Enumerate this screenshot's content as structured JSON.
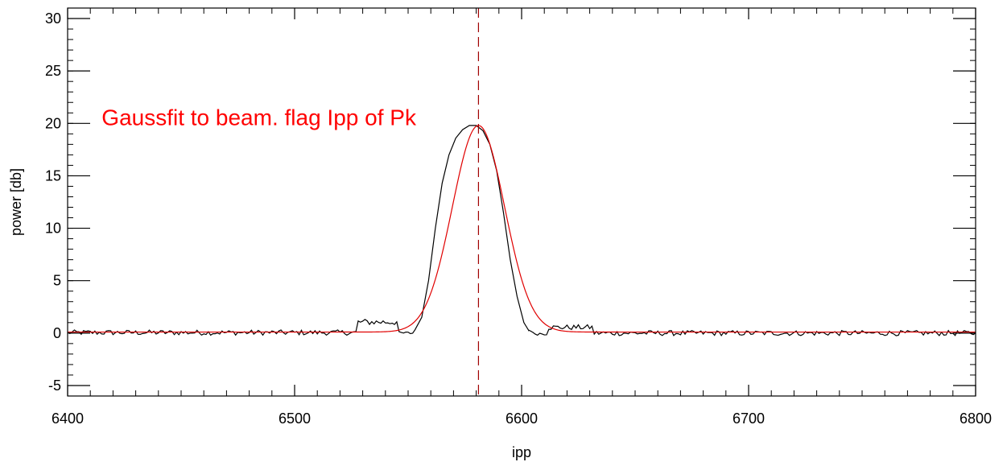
{
  "chart_data": {
    "type": "line",
    "title": "",
    "xlabel": "ipp",
    "ylabel": "power [db]",
    "xlim": [
      6400,
      6800
    ],
    "ylim": [
      -6,
      31
    ],
    "x_ticks": [
      6400,
      6500,
      6600,
      6700,
      6800
    ],
    "x_tick_labels": [
      "6400",
      "6500",
      "6600",
      "6700",
      "6800"
    ],
    "x_minor_step": 10,
    "y_ticks": [
      -5,
      0,
      5,
      10,
      15,
      20,
      25,
      30
    ],
    "y_tick_labels": [
      "-5",
      "0",
      "5",
      "10",
      "15",
      "20",
      "25",
      "30"
    ],
    "y_minor_step": 1,
    "grid": false,
    "annotation": {
      "text": "Gaussfit to beam. flag Ipp of Pk",
      "x": 6415,
      "y": 20,
      "color": "#ff0000"
    },
    "marker_line": {
      "x": 6581,
      "style": "dashed",
      "color": "#a00000"
    },
    "series": [
      {
        "kind": "measured",
        "color": "#000000",
        "x_start": 6400,
        "x_step": 1,
        "noise_ranges": [
          {
            "x": [
              6400,
              6528
            ],
            "mean": 0.05,
            "amp": 0.25
          },
          {
            "x": [
              6528,
              6546
            ],
            "mean": 1.05,
            "amp": 0.3
          },
          {
            "x": [
              6546,
              6553
            ],
            "mean": 0.0,
            "amp": 0.15
          },
          {
            "x": [
              6603,
              6605
            ],
            "mean": 0.3,
            "amp": 0.15
          },
          {
            "x": [
              6605,
              6612
            ],
            "mean": -0.05,
            "amp": 0.15
          },
          {
            "x": [
              6612,
              6632
            ],
            "mean": 0.55,
            "amp": 0.25
          },
          {
            "x": [
              6632,
              6800
            ],
            "mean": 0.0,
            "amp": 0.25
          }
        ],
        "peak_points": [
          [
            6553,
            0.3
          ],
          [
            6556,
            1.5
          ],
          [
            6559,
            5.0
          ],
          [
            6562,
            10.0
          ],
          [
            6565,
            14.3
          ],
          [
            6568,
            17.0
          ],
          [
            6571,
            18.6
          ],
          [
            6574,
            19.4
          ],
          [
            6577,
            19.8
          ],
          [
            6580,
            19.8
          ],
          [
            6583,
            19.3
          ],
          [
            6586,
            18.0
          ],
          [
            6589,
            15.5
          ],
          [
            6592,
            11.5
          ],
          [
            6595,
            7.0
          ],
          [
            6598,
            3.5
          ],
          [
            6601,
            1.0
          ],
          [
            6603,
            0.3
          ]
        ]
      },
      {
        "kind": "gaussian_fit",
        "color": "#e00000",
        "baseline": 0.1,
        "amplitude": 19.7,
        "center": 6581,
        "sigma": 11.5
      }
    ]
  }
}
